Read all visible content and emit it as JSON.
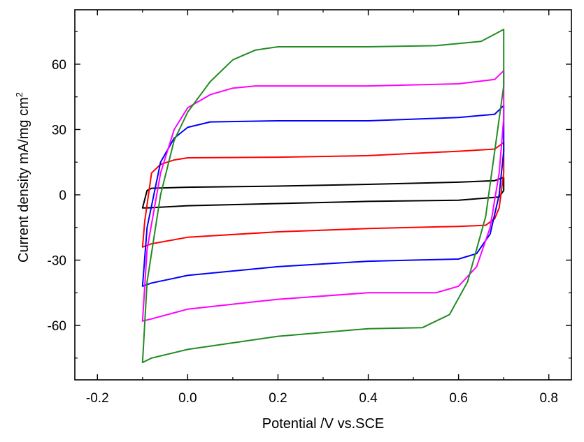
{
  "chart_data": {
    "type": "line",
    "title": "",
    "xlabel": "Potential /V vs.SCE",
    "ylabel": "Current density mA/mg cm",
    "ylabel_sup": "2",
    "xlim": [
      -0.25,
      0.85
    ],
    "ylim": [
      -85,
      85
    ],
    "xticks": [
      "-0.2",
      "0.0",
      "0.2",
      "0.4",
      "0.6",
      "0.8"
    ],
    "yticks": [
      "-60",
      "-30",
      "0",
      "30",
      "60"
    ],
    "grid": false,
    "legend": "none",
    "series": [
      {
        "color": "#000000",
        "forward": [
          [
            -0.1,
            -6
          ],
          [
            -0.09,
            2
          ],
          [
            -0.08,
            3
          ],
          [
            0.0,
            3.5
          ],
          [
            0.2,
            4
          ],
          [
            0.4,
            4.8
          ],
          [
            0.6,
            5.8
          ],
          [
            0.68,
            6.5
          ],
          [
            0.7,
            8
          ]
        ],
        "reverse": [
          [
            0.7,
            8
          ],
          [
            0.7,
            2
          ],
          [
            0.69,
            -1
          ],
          [
            0.6,
            -2.5
          ],
          [
            0.4,
            -3
          ],
          [
            0.2,
            -4
          ],
          [
            0.0,
            -5
          ],
          [
            -0.09,
            -6
          ],
          [
            -0.1,
            -6
          ]
        ]
      },
      {
        "color": "#ff0000",
        "forward": [
          [
            -0.1,
            -24
          ],
          [
            -0.095,
            -12
          ],
          [
            -0.08,
            10
          ],
          [
            -0.06,
            14
          ],
          [
            -0.03,
            16
          ],
          [
            0.0,
            17
          ],
          [
            0.2,
            17.3
          ],
          [
            0.4,
            18
          ],
          [
            0.6,
            20
          ],
          [
            0.68,
            21
          ],
          [
            0.7,
            24
          ]
        ],
        "reverse": [
          [
            0.7,
            24
          ],
          [
            0.7,
            10
          ],
          [
            0.69,
            -6
          ],
          [
            0.68,
            -11
          ],
          [
            0.66,
            -14
          ],
          [
            0.6,
            -14.5
          ],
          [
            0.4,
            -15.5
          ],
          [
            0.2,
            -17
          ],
          [
            0.0,
            -19.5
          ],
          [
            -0.08,
            -22.5
          ],
          [
            -0.1,
            -24
          ]
        ]
      },
      {
        "color": "#0000ff",
        "forward": [
          [
            -0.1,
            -42
          ],
          [
            -0.09,
            -15
          ],
          [
            -0.06,
            15
          ],
          [
            -0.03,
            26
          ],
          [
            0.0,
            31
          ],
          [
            0.05,
            33.5
          ],
          [
            0.2,
            34
          ],
          [
            0.4,
            34
          ],
          [
            0.6,
            35.5
          ],
          [
            0.68,
            37
          ],
          [
            0.7,
            41
          ]
        ],
        "reverse": [
          [
            0.7,
            41
          ],
          [
            0.7,
            20
          ],
          [
            0.69,
            0
          ],
          [
            0.67,
            -18
          ],
          [
            0.64,
            -27
          ],
          [
            0.6,
            -29.5
          ],
          [
            0.5,
            -30
          ],
          [
            0.4,
            -30.5
          ],
          [
            0.2,
            -33
          ],
          [
            0.0,
            -37
          ],
          [
            -0.08,
            -40.5
          ],
          [
            -0.1,
            -42
          ]
        ]
      },
      {
        "color": "#ff00ff",
        "forward": [
          [
            -0.1,
            -58
          ],
          [
            -0.09,
            -25
          ],
          [
            -0.06,
            10
          ],
          [
            -0.03,
            30
          ],
          [
            0.0,
            40
          ],
          [
            0.05,
            46
          ],
          [
            0.1,
            49
          ],
          [
            0.15,
            50
          ],
          [
            0.4,
            50
          ],
          [
            0.6,
            51
          ],
          [
            0.68,
            53
          ],
          [
            0.7,
            57
          ]
        ],
        "reverse": [
          [
            0.7,
            57
          ],
          [
            0.7,
            35
          ],
          [
            0.69,
            10
          ],
          [
            0.67,
            -15
          ],
          [
            0.64,
            -33
          ],
          [
            0.6,
            -42
          ],
          [
            0.55,
            -45
          ],
          [
            0.4,
            -45
          ],
          [
            0.2,
            -48
          ],
          [
            0.0,
            -52.5
          ],
          [
            -0.08,
            -57
          ],
          [
            -0.1,
            -58
          ]
        ]
      },
      {
        "color": "#228b22",
        "forward": [
          [
            -0.1,
            -77
          ],
          [
            -0.09,
            -40
          ],
          [
            -0.06,
            0
          ],
          [
            -0.03,
            25
          ],
          [
            0.0,
            38
          ],
          [
            0.05,
            52
          ],
          [
            0.1,
            62
          ],
          [
            0.15,
            66.5
          ],
          [
            0.2,
            68
          ],
          [
            0.4,
            68
          ],
          [
            0.55,
            68.5
          ],
          [
            0.65,
            70.5
          ],
          [
            0.7,
            76
          ]
        ],
        "reverse": [
          [
            0.7,
            76
          ],
          [
            0.7,
            50
          ],
          [
            0.68,
            20
          ],
          [
            0.66,
            -10
          ],
          [
            0.62,
            -40
          ],
          [
            0.58,
            -55
          ],
          [
            0.52,
            -61
          ],
          [
            0.4,
            -61.5
          ],
          [
            0.2,
            -65
          ],
          [
            0.0,
            -71
          ],
          [
            -0.08,
            -75
          ],
          [
            -0.1,
            -77
          ]
        ]
      }
    ]
  }
}
